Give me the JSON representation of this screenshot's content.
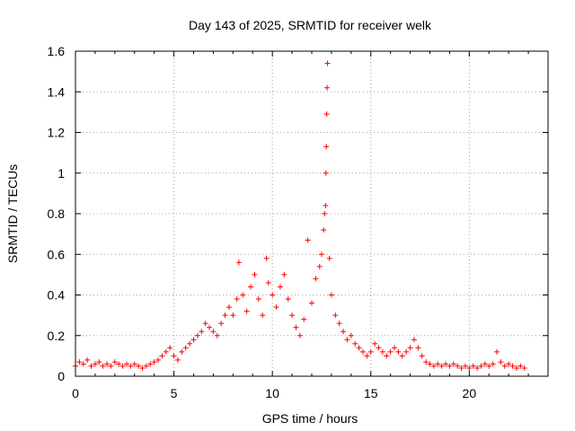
{
  "chart_data": {
    "type": "scatter",
    "title": "Day 143 of 2025, SRMTID for receiver welk",
    "xlabel": "GPS time / hours",
    "ylabel": "SRMTID / TECUs",
    "xlim": [
      0,
      24
    ],
    "ylim": [
      0,
      1.6
    ],
    "xticks": [
      0,
      5,
      10,
      15,
      20
    ],
    "xtick_labels": [
      "0",
      "5",
      "10",
      "15",
      "20"
    ],
    "yticks": [
      0,
      0.2,
      0.4,
      0.6,
      0.8,
      1.0,
      1.2,
      1.4,
      1.6
    ],
    "ytick_labels": [
      "0",
      "0.2",
      "0.4",
      "0.6",
      "0.8",
      "1",
      "1.2",
      "1.4",
      "1.6"
    ],
    "grid": true,
    "marker": "+",
    "color": "#ff0000",
    "series": [
      {
        "name": "SRMTID",
        "points": [
          [
            0.0,
            0.05
          ],
          [
            0.2,
            0.07
          ],
          [
            0.4,
            0.06
          ],
          [
            0.6,
            0.08
          ],
          [
            0.8,
            0.05
          ],
          [
            1.0,
            0.06
          ],
          [
            1.2,
            0.07
          ],
          [
            1.4,
            0.05
          ],
          [
            1.6,
            0.06
          ],
          [
            1.8,
            0.05
          ],
          [
            2.0,
            0.07
          ],
          [
            2.2,
            0.06
          ],
          [
            2.4,
            0.05
          ],
          [
            2.6,
            0.06
          ],
          [
            2.8,
            0.05
          ],
          [
            3.0,
            0.06
          ],
          [
            3.2,
            0.05
          ],
          [
            3.4,
            0.04
          ],
          [
            3.6,
            0.05
          ],
          [
            3.8,
            0.06
          ],
          [
            4.0,
            0.07
          ],
          [
            4.2,
            0.08
          ],
          [
            4.4,
            0.1
          ],
          [
            4.6,
            0.12
          ],
          [
            4.8,
            0.14
          ],
          [
            5.0,
            0.1
          ],
          [
            5.2,
            0.08
          ],
          [
            5.4,
            0.12
          ],
          [
            5.6,
            0.14
          ],
          [
            5.8,
            0.16
          ],
          [
            6.0,
            0.18
          ],
          [
            6.2,
            0.2
          ],
          [
            6.4,
            0.22
          ],
          [
            6.6,
            0.26
          ],
          [
            6.8,
            0.24
          ],
          [
            7.0,
            0.22
          ],
          [
            7.2,
            0.2
          ],
          [
            7.4,
            0.26
          ],
          [
            7.6,
            0.3
          ],
          [
            7.8,
            0.34
          ],
          [
            8.0,
            0.3
          ],
          [
            8.2,
            0.38
          ],
          [
            8.3,
            0.56
          ],
          [
            8.5,
            0.4
          ],
          [
            8.7,
            0.32
          ],
          [
            8.9,
            0.44
          ],
          [
            9.1,
            0.5
          ],
          [
            9.3,
            0.38
          ],
          [
            9.5,
            0.3
          ],
          [
            9.7,
            0.58
          ],
          [
            9.8,
            0.46
          ],
          [
            10.0,
            0.4
          ],
          [
            10.2,
            0.34
          ],
          [
            10.4,
            0.44
          ],
          [
            10.6,
            0.5
          ],
          [
            10.8,
            0.38
          ],
          [
            11.0,
            0.3
          ],
          [
            11.2,
            0.24
          ],
          [
            11.4,
            0.2
          ],
          [
            11.6,
            0.28
          ],
          [
            11.8,
            0.67
          ],
          [
            12.0,
            0.36
          ],
          [
            12.2,
            0.48
          ],
          [
            12.4,
            0.54
          ],
          [
            12.5,
            0.6
          ],
          [
            12.6,
            0.72
          ],
          [
            12.65,
            0.8
          ],
          [
            12.7,
            0.84
          ],
          [
            12.72,
            1.0
          ],
          [
            12.74,
            1.13
          ],
          [
            12.76,
            1.29
          ],
          [
            12.78,
            1.42
          ],
          [
            12.8,
            1.54
          ],
          [
            12.9,
            0.58
          ],
          [
            13.0,
            0.4
          ],
          [
            13.2,
            0.3
          ],
          [
            13.4,
            0.26
          ],
          [
            13.6,
            0.22
          ],
          [
            13.8,
            0.18
          ],
          [
            14.0,
            0.2
          ],
          [
            14.2,
            0.16
          ],
          [
            14.4,
            0.14
          ],
          [
            14.6,
            0.12
          ],
          [
            14.8,
            0.1
          ],
          [
            15.0,
            0.12
          ],
          [
            15.2,
            0.16
          ],
          [
            15.4,
            0.14
          ],
          [
            15.6,
            0.12
          ],
          [
            15.8,
            0.1
          ],
          [
            16.0,
            0.12
          ],
          [
            16.2,
            0.14
          ],
          [
            16.4,
            0.12
          ],
          [
            16.6,
            0.1
          ],
          [
            16.8,
            0.12
          ],
          [
            17.0,
            0.14
          ],
          [
            17.2,
            0.18
          ],
          [
            17.4,
            0.14
          ],
          [
            17.6,
            0.1
          ],
          [
            17.8,
            0.07
          ],
          [
            18.0,
            0.06
          ],
          [
            18.2,
            0.05
          ],
          [
            18.4,
            0.06
          ],
          [
            18.6,
            0.05
          ],
          [
            18.8,
            0.06
          ],
          [
            19.0,
            0.05
          ],
          [
            19.2,
            0.06
          ],
          [
            19.4,
            0.05
          ],
          [
            19.6,
            0.04
          ],
          [
            19.8,
            0.05
          ],
          [
            20.0,
            0.04
          ],
          [
            20.2,
            0.05
          ],
          [
            20.4,
            0.04
          ],
          [
            20.6,
            0.05
          ],
          [
            20.8,
            0.06
          ],
          [
            21.0,
            0.05
          ],
          [
            21.2,
            0.06
          ],
          [
            21.4,
            0.12
          ],
          [
            21.6,
            0.07
          ],
          [
            21.8,
            0.05
          ],
          [
            22.0,
            0.06
          ],
          [
            22.2,
            0.05
          ],
          [
            22.4,
            0.04
          ],
          [
            22.6,
            0.05
          ],
          [
            22.8,
            0.04
          ]
        ]
      }
    ]
  }
}
